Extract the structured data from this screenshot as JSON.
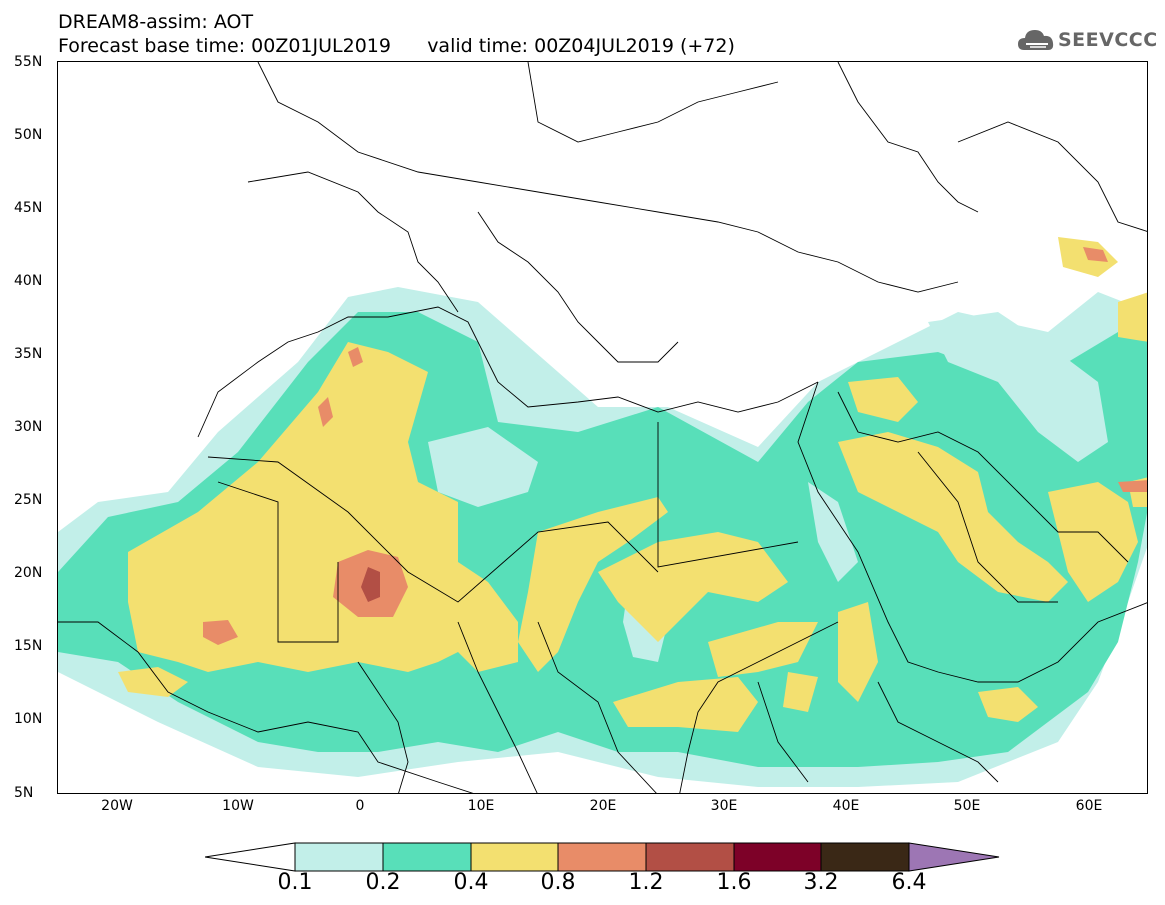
{
  "title": {
    "line1": "DREAM8-assim: AOT",
    "line2": "Forecast base time: 00Z01JUL2019      valid time: 00Z04JUL2019 (+72)"
  },
  "logo": {
    "text": "SEEVCCC",
    "icon": "cloud-icon"
  },
  "map": {
    "variable": "AOT",
    "lon_range": [
      -25,
      65
    ],
    "lat_range": [
      5,
      55
    ],
    "y_ticks": [
      "55N",
      "50N",
      "45N",
      "40N",
      "35N",
      "30N",
      "25N",
      "20N",
      "15N",
      "10N",
      "5N"
    ],
    "x_ticks": [
      "20W",
      "10W",
      "0",
      "10E",
      "20E",
      "30E",
      "40E",
      "50E",
      "60E"
    ]
  },
  "colorbar": {
    "labels": [
      "0.1",
      "0.2",
      "0.4",
      "0.8",
      "1.2",
      "1.6",
      "3.2",
      "6.4"
    ],
    "colors": [
      "#ffffff",
      "#c2efe9",
      "#58dfb9",
      "#f3e070",
      "#e88c68",
      "#b24f45",
      "#7d0128",
      "#3a2816",
      "#9d76b4"
    ]
  }
}
